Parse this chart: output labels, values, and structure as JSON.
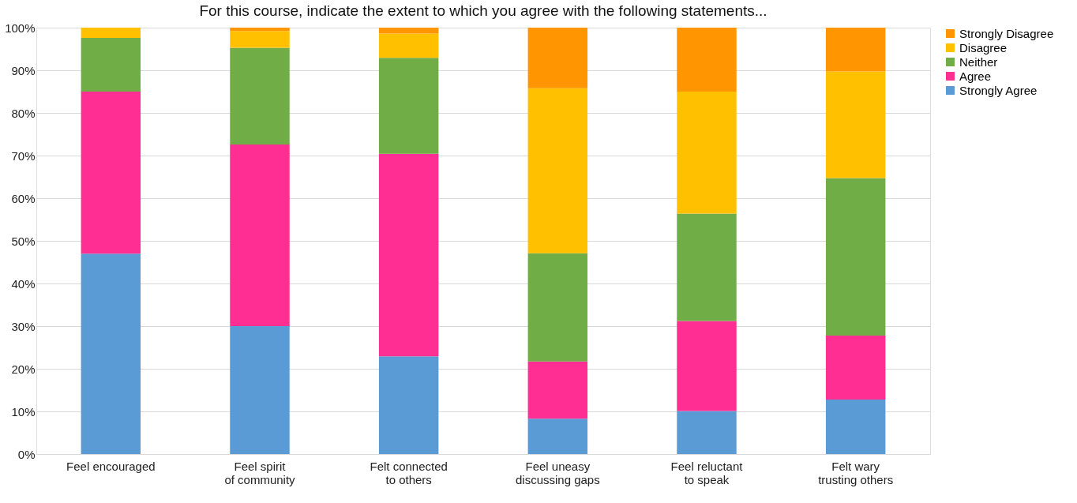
{
  "chart_data": {
    "type": "bar",
    "stacked": true,
    "title": "For this course, indicate the extent to which you agree with the following statements...",
    "categories": [
      "Feel encouraged",
      "Feel spirit of community",
      "Felt connected to others",
      "Feel uneasy discussing gaps",
      "Feel reluctant to speak",
      "Felt wary trusting others"
    ],
    "series": [
      {
        "name": "Strongly Agree",
        "color": "#5b9bd5",
        "values": [
          47,
          30,
          22.9,
          8.3,
          10.1,
          12.8
        ]
      },
      {
        "name": "Agree",
        "color": "#fe2e93",
        "values": [
          38,
          42.6,
          47.5,
          13.4,
          21.1,
          15
        ]
      },
      {
        "name": "Neither",
        "color": "#70ad47",
        "values": [
          12.6,
          22.7,
          22.5,
          25.4,
          25.2,
          36.9
        ]
      },
      {
        "name": "Disagree",
        "color": "#ffc000",
        "values": [
          2.4,
          3.9,
          5.7,
          38.7,
          28.6,
          25
        ]
      },
      {
        "name": "Strongly Disagree",
        "color": "#ff9500",
        "values": [
          0,
          0.8,
          1.4,
          14.2,
          15,
          10.3
        ]
      }
    ],
    "ylim": [
      0,
      100
    ],
    "yticks": [
      {
        "value": 0,
        "label": "0%"
      },
      {
        "value": 10,
        "label": "10%"
      },
      {
        "value": 20,
        "label": "20%"
      },
      {
        "value": 30,
        "label": "30%"
      },
      {
        "value": 40,
        "label": "40%"
      },
      {
        "value": 50,
        "label": "50%"
      },
      {
        "value": 60,
        "label": "60%"
      },
      {
        "value": 70,
        "label": "70%"
      },
      {
        "value": 80,
        "label": "80%"
      },
      {
        "value": 90,
        "label": "90%"
      },
      {
        "value": 100,
        "label": "100%"
      }
    ],
    "grid": "y",
    "legend": "right"
  }
}
